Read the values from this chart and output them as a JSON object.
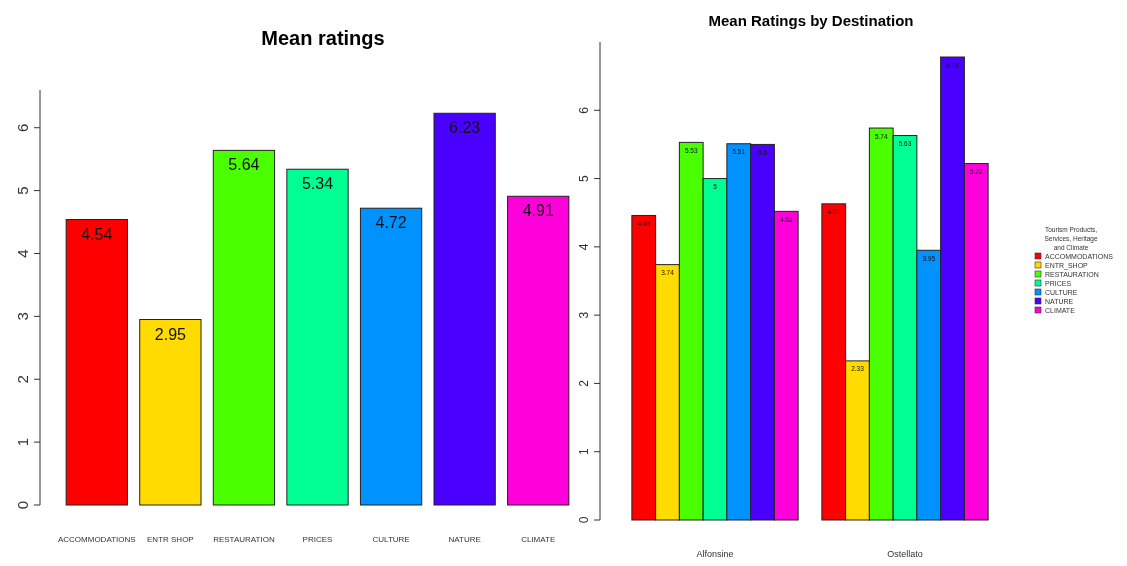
{
  "chart_data": [
    {
      "type": "bar",
      "title": "Mean ratings",
      "categories": [
        "ACCOMMODATIONS",
        "ENTR SHOP",
        "RESTAURATION",
        "PRICES",
        "CULTURE",
        "NATURE",
        "CLIMATE"
      ],
      "values": [
        4.54,
        2.95,
        5.64,
        5.34,
        4.72,
        6.23,
        4.91
      ],
      "colors": [
        "#ff0000",
        "#ffdb00",
        "#49ff00",
        "#00ff92",
        "#0092ff",
        "#4900ff",
        "#ff00db"
      ],
      "ylim": [
        0,
        6.6
      ],
      "yticks": [
        0,
        1,
        2,
        3,
        4,
        5,
        6
      ],
      "data_labels": true,
      "legend": false
    },
    {
      "type": "bar",
      "title": "Mean Ratings by Destination",
      "categories": [
        "Alfonsine",
        "Ostellato"
      ],
      "legend_title": "Tourism Products, Services, Heritage and Climate",
      "legend": "right",
      "data_labels": true,
      "ylim": [
        0,
        7
      ],
      "yticks": [
        0,
        1,
        2,
        3,
        4,
        5,
        6
      ],
      "series": [
        {
          "name": "ACCOMMODATIONS",
          "color": "#ff0000",
          "values": [
            4.46,
            4.63
          ]
        },
        {
          "name": "ENTR_SHOP",
          "color": "#ffdb00",
          "values": [
            3.74,
            2.33
          ]
        },
        {
          "name": "RESTAURATION",
          "color": "#49ff00",
          "values": [
            5.53,
            5.74
          ]
        },
        {
          "name": "PRICES",
          "color": "#00ff92",
          "values": [
            5,
            5.63
          ]
        },
        {
          "name": "CULTURE",
          "color": "#0092ff",
          "values": [
            5.51,
            3.95
          ]
        },
        {
          "name": "NATURE",
          "color": "#4900ff",
          "values": [
            5.5,
            6.78
          ]
        },
        {
          "name": "CLIMATE",
          "color": "#ff00db",
          "values": [
            4.52,
            5.22
          ]
        }
      ]
    }
  ]
}
